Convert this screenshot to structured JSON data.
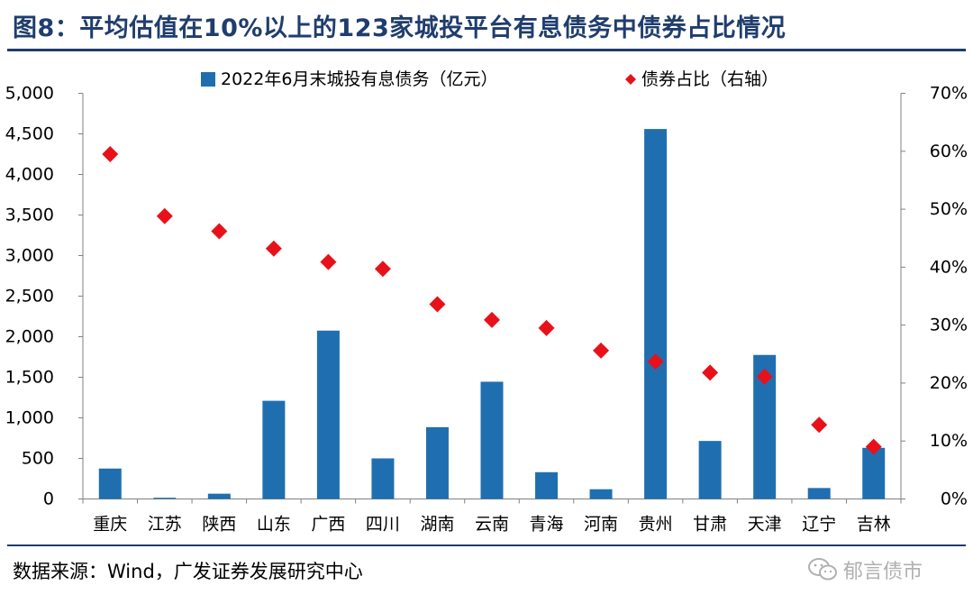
{
  "header": {
    "title": "图8：平均估值在10%以上的123家城投平台有息债务中债券占比情况"
  },
  "footer": {
    "source": "数据来源：Wind，广发证券发展研究中心",
    "watermark_text": "郁言债市",
    "watermark_icon": "wechat-icon"
  },
  "chart_data": {
    "type": "bar",
    "categories": [
      "重庆",
      "江苏",
      "陕西",
      "山东",
      "广西",
      "四川",
      "湖南",
      "云南",
      "青海",
      "河南",
      "贵州",
      "甘肃",
      "天津",
      "辽宁",
      "吉林"
    ],
    "series": [
      {
        "name": "2022年6月末城投有息债务（亿元）",
        "type": "bar",
        "axis": "left",
        "color": "#1f6fb0",
        "values": [
          375,
          15,
          65,
          1210,
          2075,
          500,
          885,
          1445,
          330,
          120,
          4560,
          715,
          1775,
          135,
          630
        ]
      },
      {
        "name": "债券占比（右轴）",
        "type": "scatter",
        "marker": "diamond",
        "axis": "right",
        "color": "#e8111a",
        "values": [
          0.595,
          0.488,
          0.462,
          0.432,
          0.409,
          0.397,
          0.336,
          0.309,
          0.295,
          0.256,
          0.237,
          0.218,
          0.211,
          0.128,
          0.09
        ]
      }
    ],
    "ylim_left": [
      0,
      5000
    ],
    "yticks_left": [
      "0",
      "500",
      "1,000",
      "1,500",
      "2,000",
      "2,500",
      "3,000",
      "3,500",
      "4,000",
      "4,500",
      "5,000"
    ],
    "ylim_right": [
      0,
      0.7
    ],
    "yticks_right": [
      "0%",
      "10%",
      "20%",
      "30%",
      "40%",
      "50%",
      "60%",
      "70%"
    ],
    "legend_position": "top-center",
    "grid": false
  }
}
